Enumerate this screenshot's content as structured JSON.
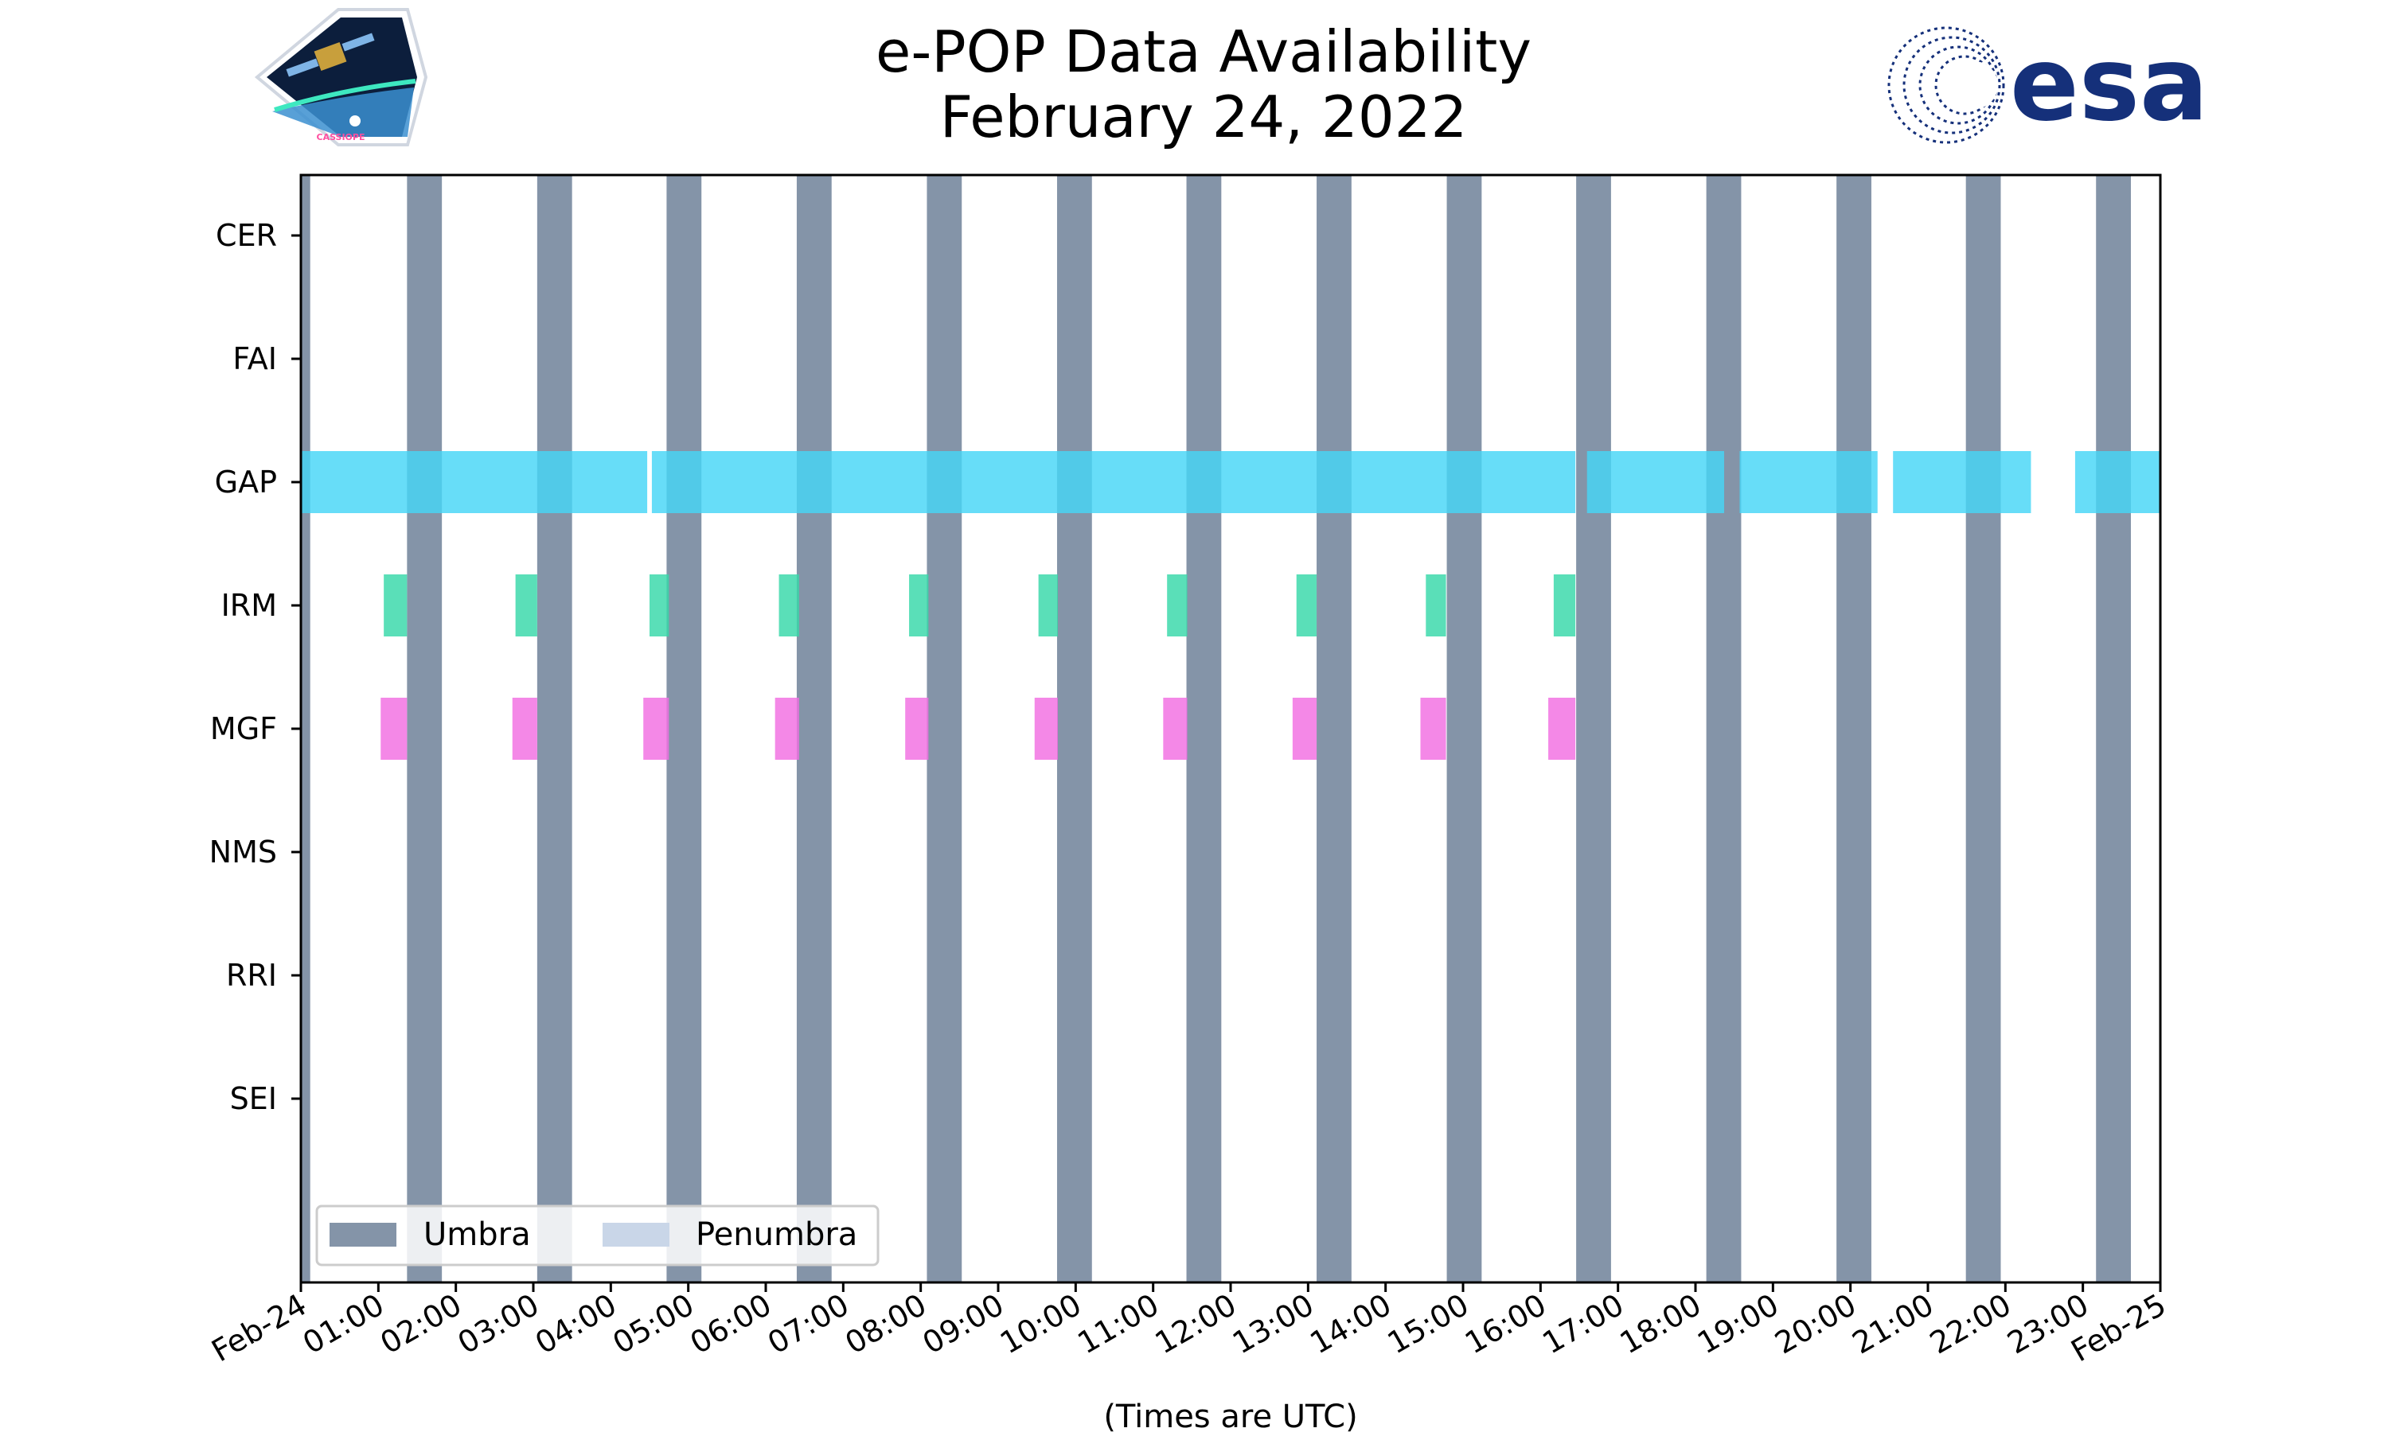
{
  "header": {
    "title_line1": "e-POP Data Availability",
    "title_line2": "February 24, 2022"
  },
  "logos": {
    "left_logo_caption": "CASSIOPE",
    "right_logo_text": "esa",
    "right_logo_color": "#15307a"
  },
  "colors": {
    "umbra": "#8494a8",
    "penumbra": "#c9d6e8",
    "GAP": "#46d6f6",
    "IRM": "#36d8a8",
    "MGF": "#f26ee2"
  },
  "chart_data": {
    "type": "timeline",
    "title": "e-POP Data Availability\nFebruary 24, 2022",
    "xlabel": "(Times are UTC)",
    "ylabel": "",
    "x_range_hours": [
      0,
      24
    ],
    "x_tick_labels": [
      "Feb-24",
      "01:00",
      "02:00",
      "03:00",
      "04:00",
      "05:00",
      "06:00",
      "07:00",
      "08:00",
      "09:00",
      "10:00",
      "11:00",
      "12:00",
      "13:00",
      "14:00",
      "15:00",
      "16:00",
      "17:00",
      "18:00",
      "19:00",
      "20:00",
      "21:00",
      "22:00",
      "23:00",
      "Feb-25"
    ],
    "instruments": [
      "CER",
      "FAI",
      "GAP",
      "IRM",
      "MGF",
      "NMS",
      "RRI",
      "SEI"
    ],
    "umbra_intervals": [
      [
        0.0,
        0.12
      ],
      [
        1.37,
        1.82
      ],
      [
        3.05,
        3.5
      ],
      [
        4.72,
        5.17
      ],
      [
        6.4,
        6.85
      ],
      [
        8.08,
        8.53
      ],
      [
        9.76,
        10.21
      ],
      [
        11.43,
        11.88
      ],
      [
        13.11,
        13.56
      ],
      [
        14.79,
        15.24
      ],
      [
        16.46,
        16.91
      ],
      [
        18.14,
        18.59
      ],
      [
        19.82,
        20.27
      ],
      [
        21.49,
        21.94
      ],
      [
        23.17,
        23.62
      ]
    ],
    "penumbra_intervals": [],
    "series": [
      {
        "name": "GAP",
        "intervals": [
          [
            0.0,
            4.47
          ],
          [
            4.53,
            16.45
          ],
          [
            16.6,
            18.37
          ],
          [
            18.57,
            20.35
          ],
          [
            20.55,
            22.33
          ],
          [
            22.9,
            24.0
          ]
        ]
      },
      {
        "name": "IRM",
        "intervals": [
          [
            1.07,
            1.37
          ],
          [
            2.77,
            3.05
          ],
          [
            4.5,
            4.75
          ],
          [
            6.17,
            6.43
          ],
          [
            7.85,
            8.1
          ],
          [
            9.52,
            9.77
          ],
          [
            11.18,
            11.44
          ],
          [
            12.85,
            13.11
          ],
          [
            14.52,
            14.78
          ],
          [
            16.17,
            16.45
          ]
        ]
      },
      {
        "name": "MGF",
        "intervals": [
          [
            1.03,
            1.37
          ],
          [
            2.73,
            3.05
          ],
          [
            4.42,
            4.75
          ],
          [
            6.12,
            6.43
          ],
          [
            7.8,
            8.1
          ],
          [
            9.47,
            9.77
          ],
          [
            11.13,
            11.44
          ],
          [
            12.8,
            13.11
          ],
          [
            14.45,
            14.78
          ],
          [
            16.1,
            16.45
          ]
        ]
      }
    ],
    "legend": {
      "placement": "bottom-left",
      "entries": [
        "Umbra",
        "Penumbra"
      ]
    }
  }
}
